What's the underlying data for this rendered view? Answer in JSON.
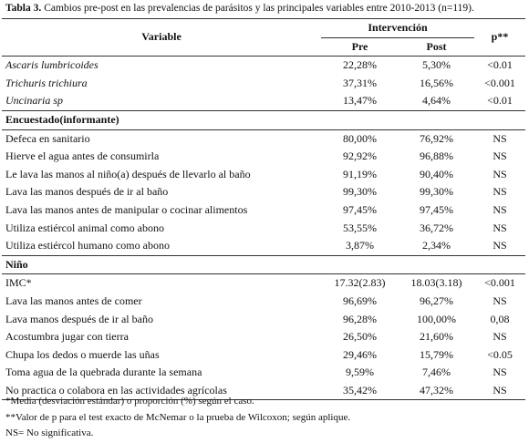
{
  "caption": {
    "label": "Tabla 3.",
    "text": "Cambios pre-post en las prevalencias de parásitos y las principales variables entre 2010-2013 (n=119)."
  },
  "header": {
    "variable": "Variable",
    "intervention": "Intervención",
    "pre": "Pre",
    "post": "Post",
    "p": "p**"
  },
  "parasites": [
    [
      "Ascaris lumbricoides",
      "22,28%",
      "5,30%",
      "<0.01"
    ],
    [
      "Trichuris trichiura",
      "37,31%",
      "16,56%",
      "<0.001"
    ],
    [
      "Uncinaria sp",
      "13,47%",
      "4,64%",
      "<0.01"
    ]
  ],
  "sections": [
    {
      "title": "Encuestado(informante)",
      "rows": [
        [
          "Defeca en sanitario",
          "80,00%",
          "76,92%",
          "NS"
        ],
        [
          "Hierve el agua antes de consumirla",
          "92,92%",
          "96,88%",
          "NS"
        ],
        [
          "Le lava las manos al niño(a) después de llevarlo al baño",
          "91,19%",
          "90,40%",
          "NS"
        ],
        [
          "Lava las manos después de ir al baño",
          "99,30%",
          "99,30%",
          "NS"
        ],
        [
          "Lava las manos antes de manipular o cocinar alimentos",
          "97,45%",
          "97,45%",
          "NS"
        ],
        [
          "Utiliza estiércol animal como abono",
          "53,55%",
          "36,72%",
          "NS"
        ],
        [
          "Utiliza estiércol humano como abono",
          "3,87%",
          "2,34%",
          "NS"
        ]
      ]
    },
    {
      "title": "Niño",
      "rows": [
        [
          "IMC*",
          "17.32(2.83)",
          "18.03(3.18)",
          "<0.001"
        ],
        [
          "Lava  las manos antes de comer",
          "96,69%",
          "96,27%",
          "NS"
        ],
        [
          "Lava manos después de ir al baño",
          "96,28%",
          "100,00%",
          "0,08"
        ],
        [
          "Acostumbra jugar con tierra",
          "26,50%",
          "21,60%",
          "NS"
        ],
        [
          "Chupa los dedos o muerde las uñas",
          "29,46%",
          "15,79%",
          "<0.05"
        ],
        [
          "Toma agua de la quebrada durante la semana",
          "9,59%",
          "7,46%",
          "NS"
        ],
        [
          "No practica o colabora en las actividades agrícolas",
          "35,42%",
          "47,32%",
          "NS"
        ]
      ]
    }
  ],
  "footnotes": [
    "*Media (desviación estándar) o proporción (%) según el caso.",
    "**Valor de p para el test exacto de McNemar o la prueba de Wilcoxon; según aplique.",
    "NS= No significativa."
  ]
}
